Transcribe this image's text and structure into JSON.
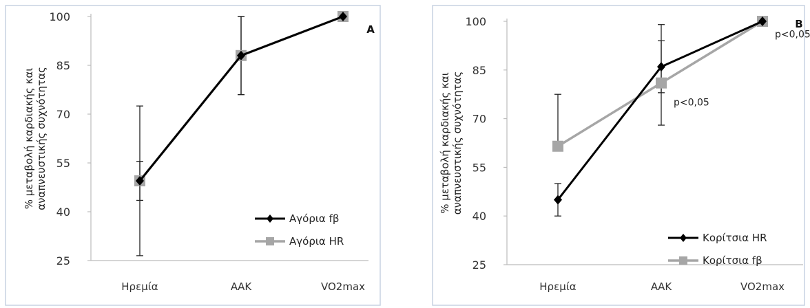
{
  "chart_data": [
    {
      "type": "line",
      "panel_label": "A",
      "ylabel_line1": "% μεταβολή καρδιακής και",
      "ylabel_line2": "αναπνευστικής συχνότητας",
      "yticks": [
        25,
        40,
        55,
        70,
        85,
        100
      ],
      "ylim": [
        25,
        100
      ],
      "categories": [
        "Ηρεμία",
        "ΑΑΚ",
        "VO2max"
      ],
      "legend_position": "bottom-right",
      "series": [
        {
          "name": "Αγόρια fβ",
          "color": "#000000",
          "marker": "diamond",
          "values": [
            49.5,
            88,
            100
          ],
          "err_low": [
            6,
            12,
            0
          ],
          "err_high": [
            6,
            12,
            0
          ]
        },
        {
          "name": "Αγόρια HR",
          "color": "#a6a6a6",
          "marker": "square",
          "values": [
            49.5,
            88,
            100
          ],
          "err_low": [
            23,
            12,
            0
          ],
          "err_high": [
            23,
            12,
            0
          ]
        }
      ],
      "annotations": []
    },
    {
      "type": "line",
      "panel_label": "B",
      "ylabel_line1": "% μεταβολή καρδιακής και",
      "ylabel_line2": "αναπνευστικής συχνότητας",
      "yticks": [
        25,
        40,
        55,
        70,
        85,
        100
      ],
      "ylim": [
        25,
        100
      ],
      "categories": [
        "Ηρεμία",
        "ΑΑΚ",
        "VO2max"
      ],
      "legend_position": "bottom-right",
      "series": [
        {
          "name": "Κορίτσια HR",
          "color": "#000000",
          "marker": "diamond",
          "values": [
            45,
            86,
            100
          ],
          "err_low": [
            5,
            8,
            0
          ],
          "err_high": [
            5,
            8,
            0
          ]
        },
        {
          "name": "Κορίτσια fβ",
          "color": "#a6a6a6",
          "marker": "square",
          "values": [
            61.5,
            81,
            100
          ],
          "err_low": [
            0,
            13,
            0
          ],
          "err_high": [
            16,
            18,
            0
          ]
        }
      ],
      "annotations": [
        {
          "category": "ΑΑΚ",
          "value": 74,
          "text": "p<0,05"
        },
        {
          "category": "VO2max",
          "value": 95,
          "text": "p<0,05"
        }
      ]
    }
  ]
}
